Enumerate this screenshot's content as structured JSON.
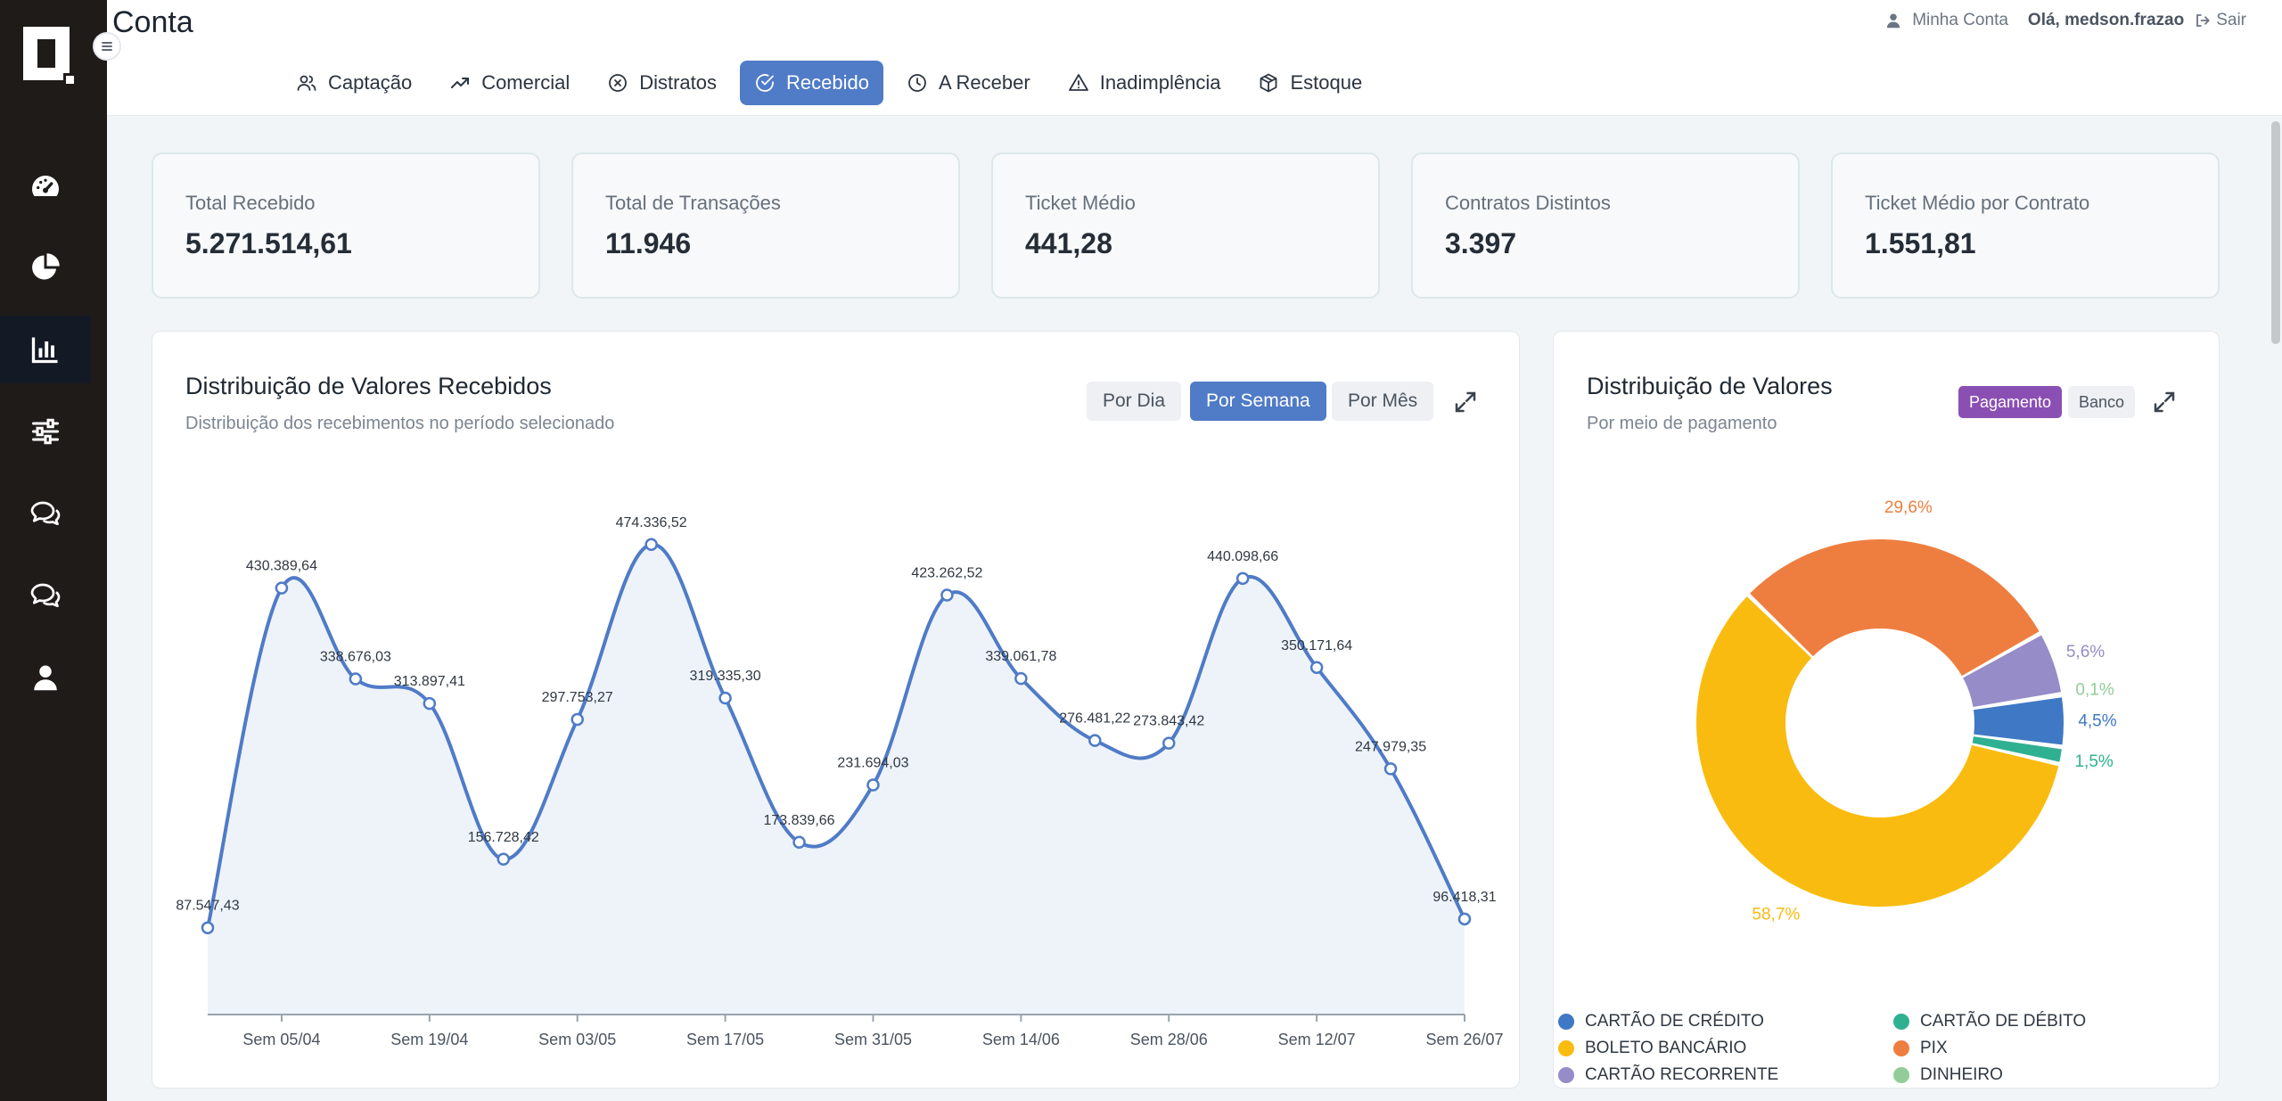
{
  "app": {
    "page_title": "Conta"
  },
  "user": {
    "account_label": "Minha Conta",
    "greeting": "Olá, medson.frazao",
    "logout_label": "Sair"
  },
  "nav_tabs": [
    {
      "label": "Captação",
      "icon": "users-icon"
    },
    {
      "label": "Comercial",
      "icon": "trend-up-icon"
    },
    {
      "label": "Distratos",
      "icon": "circle-x-icon"
    },
    {
      "label": "Recebido",
      "icon": "check-circle-icon",
      "active": true
    },
    {
      "label": "A Receber",
      "icon": "clock-icon"
    },
    {
      "label": "Inadimplência",
      "icon": "warning-icon"
    },
    {
      "label": "Estoque",
      "icon": "box-icon"
    }
  ],
  "sidebar": [
    {
      "icon": "dashboard-gauge-icon"
    },
    {
      "icon": "pie-chart-icon"
    },
    {
      "icon": "bar-chart-icon",
      "active": true
    },
    {
      "icon": "sliders-icon"
    },
    {
      "icon": "chat-bubbles-icon"
    },
    {
      "icon": "chat-bubbles-icon"
    },
    {
      "icon": "user-icon"
    }
  ],
  "kpis": [
    {
      "label": "Total Recebido",
      "value": "5.271.514,61"
    },
    {
      "label": "Total de Transações",
      "value": "11.946"
    },
    {
      "label": "Ticket Médio",
      "value": "441,28"
    },
    {
      "label": "Contratos Distintos",
      "value": "3.397"
    },
    {
      "label": "Ticket Médio por Contrato",
      "value": "1.551,81"
    }
  ],
  "line_panel": {
    "title": "Distribuição de Valores Recebidos",
    "subtitle": "Distribuição dos recebimentos no período selecionado",
    "buttons": [
      "Por Dia",
      "Por Semana",
      "Por Mês"
    ],
    "active_button": "Por Semana"
  },
  "pie_panel": {
    "title": "Distribuição de Valores",
    "subtitle": "Por meio de pagamento",
    "buttons": [
      "Pagamento",
      "Banco"
    ],
    "active_button": "Pagamento"
  },
  "chart_data": [
    {
      "type": "area",
      "title": "Distribuição de Valores Recebidos",
      "x_tick_labels": [
        "Sem 05/04",
        "Sem 19/04",
        "Sem 03/05",
        "Sem 17/05",
        "Sem 31/05",
        "Sem 14/06",
        "Sem 28/06",
        "Sem 12/07",
        "Sem 26/07"
      ],
      "values": [
        87547.43,
        430389.64,
        338676.03,
        313897.41,
        156728.42,
        297753.27,
        474336.52,
        319335.3,
        173839.66,
        231694.03,
        423262.52,
        339061.78,
        276481.22,
        273843.42,
        440098.66,
        350171.64,
        247979.35,
        96418.31
      ],
      "data_labels": [
        "87.547,43",
        "430.389,64",
        "338.676,03",
        "313.897,41",
        "156.728,42",
        "297.753,27",
        "474.336,52",
        "319.335,30",
        "173.839,66",
        "231.694,03",
        "423.262,52",
        "339.061,78",
        "276.481,22",
        "273.843,42",
        "440.098,66",
        "350.171,64",
        "247.979,35",
        "96.418,31"
      ],
      "ylim": [
        0,
        520000
      ],
      "line_color": "#4f7bc7",
      "fill_color": "#eef3fa"
    },
    {
      "type": "pie",
      "title": "Distribuição de Valores",
      "donut": true,
      "slices": [
        {
          "name": "CARTÃO DE CRÉDITO",
          "value": 4.5,
          "label": "4,5%",
          "color": "#3f78c4"
        },
        {
          "name": "CARTÃO DE DÉBITO",
          "value": 1.5,
          "label": "1,5%",
          "color": "#2fb191"
        },
        {
          "name": "BOLETO BANCÁRIO",
          "value": 58.7,
          "label": "58,7%",
          "color": "#f9bb0f"
        },
        {
          "name": "PIX",
          "value": 29.6,
          "label": "29,6%",
          "color": "#ee7e3f"
        },
        {
          "name": "CARTÃO RECORRENTE",
          "value": 5.6,
          "label": "5,6%",
          "color": "#958cc8"
        },
        {
          "name": "DINHEIRO",
          "value": 0.1,
          "label": "0,1%",
          "color": "#92cc98"
        }
      ]
    }
  ]
}
